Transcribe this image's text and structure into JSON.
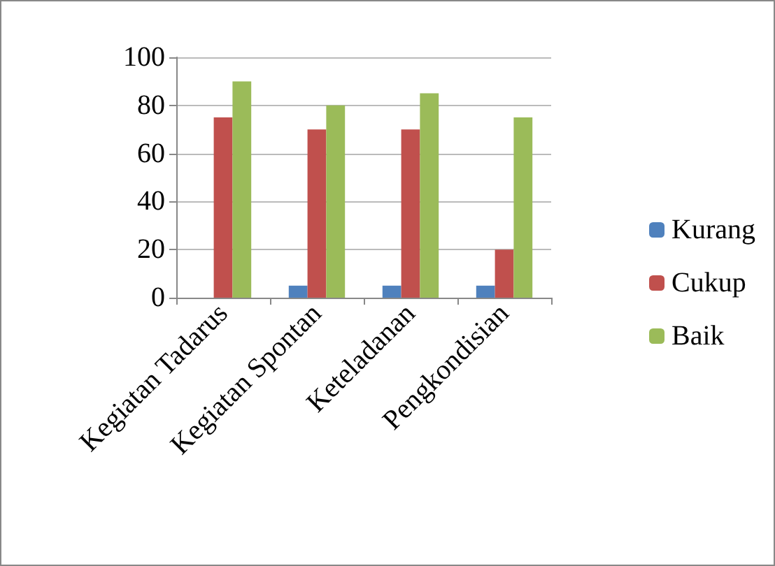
{
  "chart_data": {
    "type": "bar",
    "categories": [
      "Kegiatan Tadarus",
      "Kegiatan Spontan",
      "Keteladanan",
      "Pengkondisian"
    ],
    "series": [
      {
        "name": "Kurang",
        "color": "#4f81bd",
        "values": [
          0,
          5,
          5,
          5
        ]
      },
      {
        "name": "Cukup",
        "color": "#c0504d",
        "values": [
          75,
          70,
          70,
          20
        ]
      },
      {
        "name": "Baik",
        "color": "#9bbb59",
        "values": [
          90,
          80,
          85,
          75
        ]
      }
    ],
    "ylim": [
      0,
      100
    ],
    "yticks": [
      0,
      20,
      40,
      60,
      80,
      100
    ],
    "grid": "y",
    "legend": "right"
  }
}
